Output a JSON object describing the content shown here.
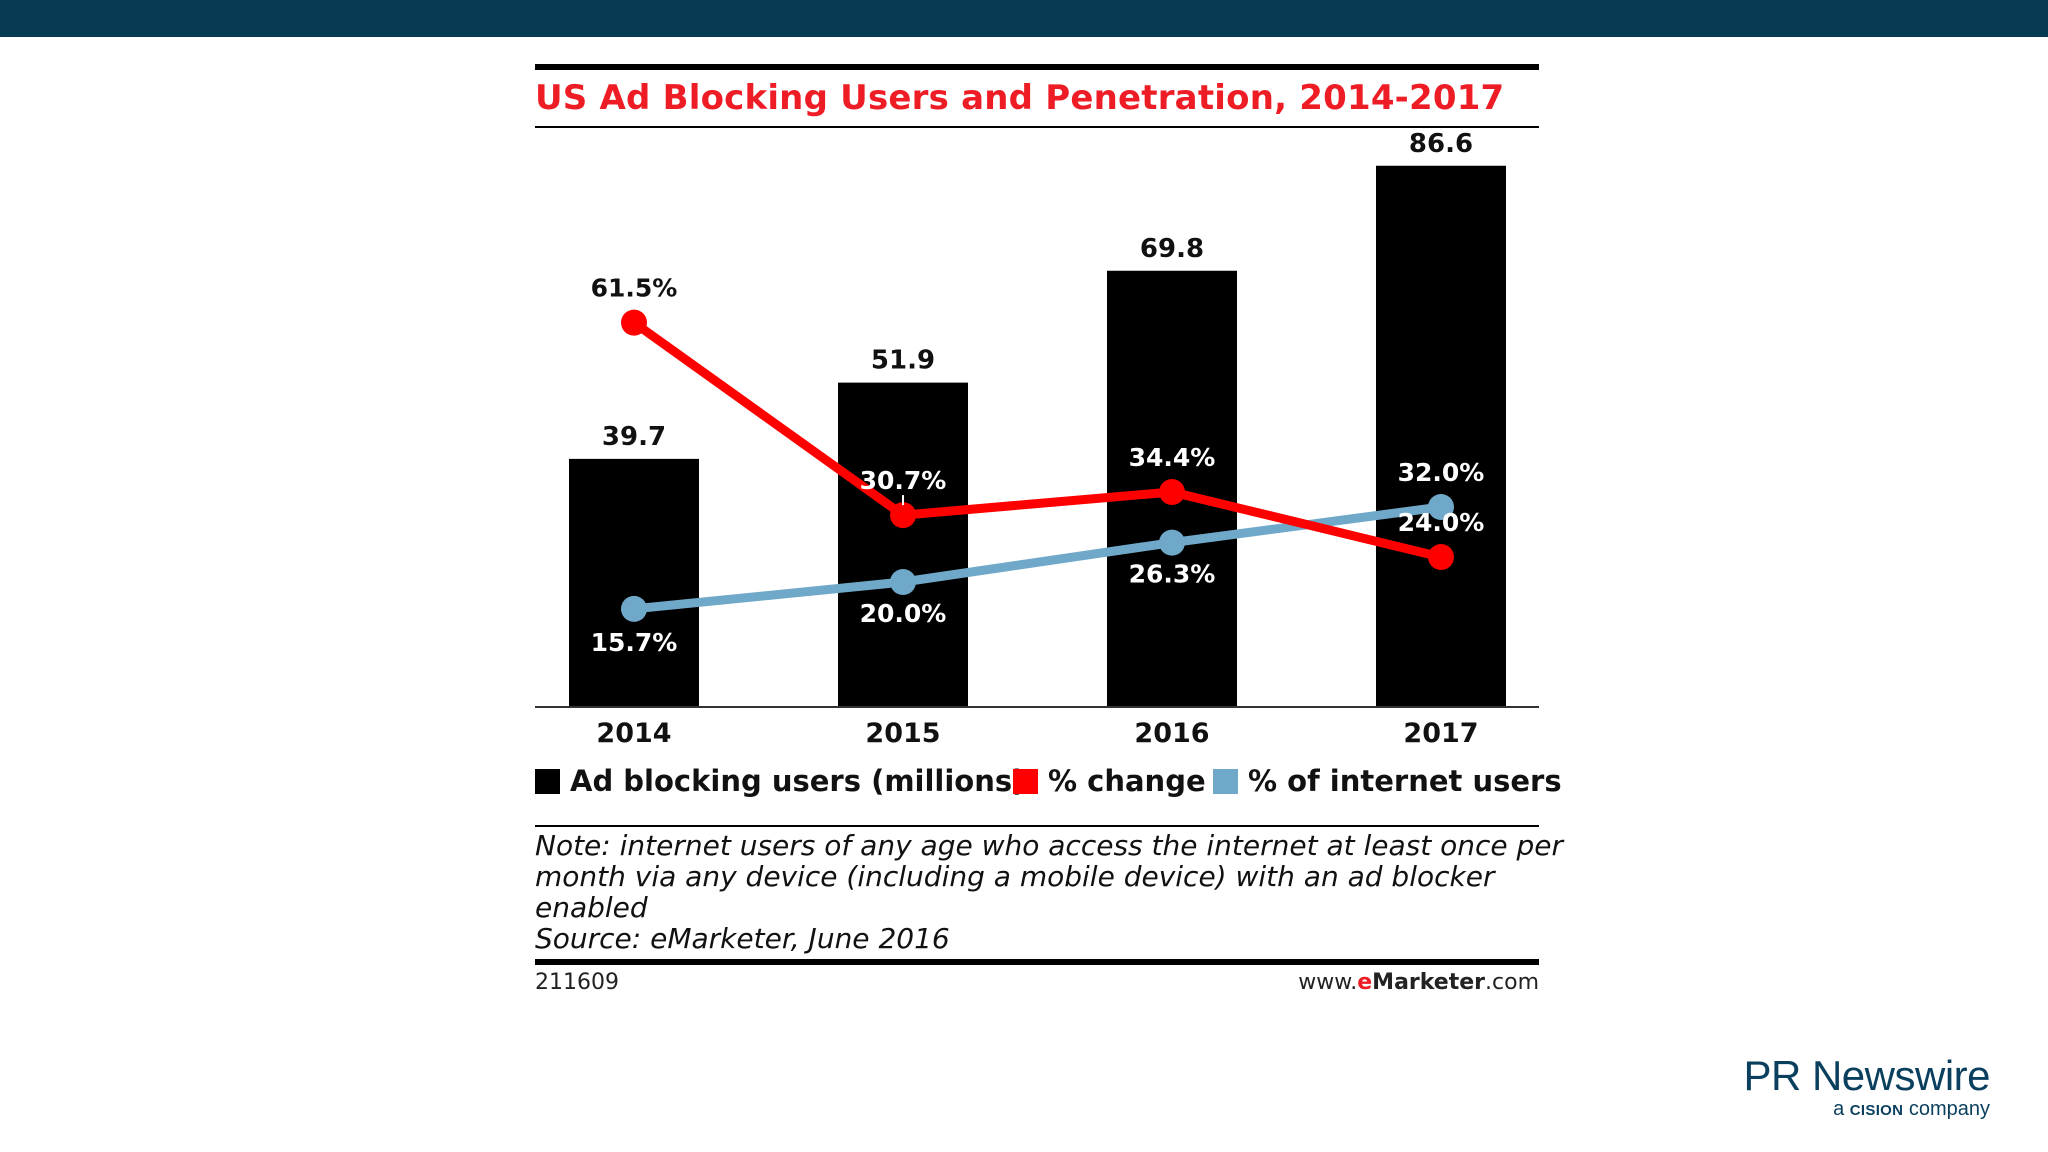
{
  "chart_data": {
    "type": "bar",
    "title": "US Ad Blocking Users and Penetration, 2014-2017",
    "categories": [
      "2014",
      "2015",
      "2016",
      "2017"
    ],
    "series": [
      {
        "name": "Ad blocking users (millions)",
        "kind": "bar",
        "values": [
          39.7,
          51.9,
          69.8,
          86.6
        ],
        "labels": [
          "39.7",
          "51.9",
          "69.8",
          "86.6"
        ],
        "color": "#000000"
      },
      {
        "name": "% change",
        "kind": "line",
        "values": [
          61.5,
          30.7,
          34.4,
          24.0
        ],
        "labels": [
          "61.5%",
          "30.7%",
          "34.4%",
          "24.0%"
        ],
        "color": "#ff0000"
      },
      {
        "name": "% of internet users",
        "kind": "line",
        "values": [
          15.7,
          20.0,
          26.3,
          32.0
        ],
        "labels": [
          "15.7%",
          "20.0%",
          "26.3%",
          "32.0%"
        ],
        "color": "#6fa8c8"
      }
    ],
    "ylim": [
      0,
      100
    ],
    "grid": false,
    "legend_position": "bottom"
  },
  "note": {
    "lines": [
      "Note: internet users of any age who access the internet at least once per",
      "month via any device (including a mobile device) with an ad blocker",
      "enabled"
    ],
    "source": "Source: eMarketer, June 2016"
  },
  "footer": {
    "chart_id": "211609",
    "url_prefix": "www.",
    "url_e": "e",
    "url_brand": "Marketer",
    "url_suffix": ".com"
  },
  "logo": {
    "name": "PR Newswire",
    "tagline_prefix": "a",
    "tagline_brand": "CISION",
    "tagline_suffix": "company"
  },
  "colors": {
    "top_bar": "#063a52",
    "title": "#ee1c25",
    "bar": "#000000",
    "change_line": "#ff0000",
    "internet_line": "#6fa8c8"
  }
}
